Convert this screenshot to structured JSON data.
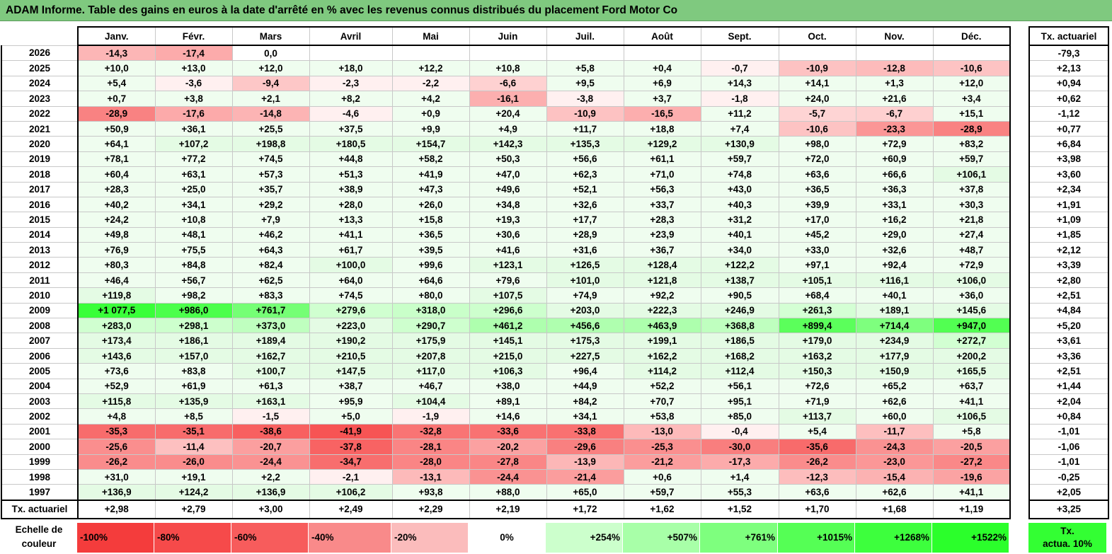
{
  "title": "ADAM Informe. Table des gains en euros à la date d'arrêté en % avec les revenus connus distribués du placement Ford Motor Co",
  "months": [
    "Janv.",
    "Févr.",
    "Mars",
    "Avril",
    "Mai",
    "Juin",
    "Juil.",
    "Août",
    "Sept.",
    "Oct.",
    "Nov.",
    "Déc."
  ],
  "rate_header": "Tx. actuariel",
  "rows": [
    {
      "year": "2026",
      "values": [
        "-14,3",
        "-17,4",
        "0,0",
        "",
        "",
        "",
        "",
        "",
        "",
        "",
        "",
        ""
      ],
      "rate": "-79,3"
    },
    {
      "year": "2025",
      "values": [
        "+10,0",
        "+13,0",
        "+12,0",
        "+18,0",
        "+12,2",
        "+10,8",
        "+5,8",
        "+0,4",
        "-0,7",
        "-10,9",
        "-12,8",
        "-10,6"
      ],
      "rate": "+2,13"
    },
    {
      "year": "2024",
      "values": [
        "+5,4",
        "-3,6",
        "-9,4",
        "-2,3",
        "-2,2",
        "-6,6",
        "+9,5",
        "+6,9",
        "+14,3",
        "+14,1",
        "+1,3",
        "+12,0"
      ],
      "rate": "+0,94"
    },
    {
      "year": "2023",
      "values": [
        "+0,7",
        "+3,8",
        "+2,1",
        "+8,2",
        "+4,2",
        "-16,1",
        "-3,8",
        "+3,7",
        "-1,8",
        "+24,0",
        "+21,6",
        "+3,4"
      ],
      "rate": "+0,62"
    },
    {
      "year": "2022",
      "values": [
        "-28,9",
        "-17,6",
        "-14,8",
        "-4,6",
        "+0,9",
        "+20,4",
        "-10,9",
        "-16,5",
        "+11,2",
        "-5,7",
        "-6,7",
        "+15,1"
      ],
      "rate": "-1,12"
    },
    {
      "year": "2021",
      "values": [
        "+50,9",
        "+36,1",
        "+25,5",
        "+37,5",
        "+9,9",
        "+4,9",
        "+11,7",
        "+18,8",
        "+7,4",
        "-10,6",
        "-23,3",
        "-28,9"
      ],
      "rate": "+0,77"
    },
    {
      "year": "2020",
      "values": [
        "+64,1",
        "+107,2",
        "+198,8",
        "+180,5",
        "+154,7",
        "+142,3",
        "+135,3",
        "+129,2",
        "+130,9",
        "+98,0",
        "+72,9",
        "+83,2"
      ],
      "rate": "+6,84"
    },
    {
      "year": "2019",
      "values": [
        "+78,1",
        "+77,2",
        "+74,5",
        "+44,8",
        "+58,2",
        "+50,3",
        "+56,6",
        "+61,1",
        "+59,7",
        "+72,0",
        "+60,9",
        "+59,7"
      ],
      "rate": "+3,98"
    },
    {
      "year": "2018",
      "values": [
        "+60,4",
        "+63,1",
        "+57,3",
        "+51,3",
        "+41,9",
        "+47,0",
        "+62,3",
        "+71,0",
        "+74,8",
        "+63,6",
        "+66,6",
        "+106,1"
      ],
      "rate": "+3,60"
    },
    {
      "year": "2017",
      "values": [
        "+28,3",
        "+25,0",
        "+35,7",
        "+38,9",
        "+47,3",
        "+49,6",
        "+52,1",
        "+56,3",
        "+43,0",
        "+36,5",
        "+36,3",
        "+37,8"
      ],
      "rate": "+2,34"
    },
    {
      "year": "2016",
      "values": [
        "+40,2",
        "+34,1",
        "+29,2",
        "+28,0",
        "+26,0",
        "+34,8",
        "+32,6",
        "+33,7",
        "+40,3",
        "+39,9",
        "+33,1",
        "+30,3"
      ],
      "rate": "+1,91"
    },
    {
      "year": "2015",
      "values": [
        "+24,2",
        "+10,8",
        "+7,9",
        "+13,3",
        "+15,8",
        "+19,3",
        "+17,7",
        "+28,3",
        "+31,2",
        "+17,0",
        "+16,2",
        "+21,8"
      ],
      "rate": "+1,09"
    },
    {
      "year": "2014",
      "values": [
        "+49,8",
        "+48,1",
        "+46,2",
        "+41,1",
        "+36,5",
        "+30,6",
        "+28,9",
        "+23,9",
        "+40,1",
        "+45,2",
        "+29,0",
        "+27,4"
      ],
      "rate": "+1,85"
    },
    {
      "year": "2013",
      "values": [
        "+76,9",
        "+75,5",
        "+64,3",
        "+61,7",
        "+39,5",
        "+41,6",
        "+31,6",
        "+36,7",
        "+34,0",
        "+33,0",
        "+32,6",
        "+48,7"
      ],
      "rate": "+2,12"
    },
    {
      "year": "2012",
      "values": [
        "+80,3",
        "+84,8",
        "+82,4",
        "+100,0",
        "+99,6",
        "+123,1",
        "+126,5",
        "+128,4",
        "+122,2",
        "+97,1",
        "+92,4",
        "+72,9"
      ],
      "rate": "+3,39"
    },
    {
      "year": "2011",
      "values": [
        "+46,4",
        "+56,7",
        "+62,5",
        "+64,0",
        "+64,6",
        "+79,6",
        "+101,0",
        "+121,8",
        "+138,7",
        "+105,1",
        "+116,1",
        "+106,0"
      ],
      "rate": "+2,80"
    },
    {
      "year": "2010",
      "values": [
        "+119,8",
        "+98,2",
        "+83,3",
        "+74,5",
        "+80,0",
        "+107,5",
        "+74,9",
        "+92,2",
        "+90,5",
        "+68,4",
        "+40,1",
        "+36,0"
      ],
      "rate": "+2,51"
    },
    {
      "year": "2009",
      "values": [
        "+1 077,5",
        "+986,0",
        "+761,7",
        "+279,6",
        "+318,0",
        "+296,6",
        "+203,0",
        "+222,3",
        "+246,9",
        "+261,3",
        "+189,1",
        "+145,6"
      ],
      "rate": "+4,84"
    },
    {
      "year": "2008",
      "values": [
        "+283,0",
        "+298,1",
        "+373,0",
        "+223,0",
        "+290,7",
        "+461,2",
        "+456,6",
        "+463,9",
        "+368,8",
        "+899,4",
        "+714,4",
        "+947,0"
      ],
      "rate": "+5,20"
    },
    {
      "year": "2007",
      "values": [
        "+173,4",
        "+186,1",
        "+189,4",
        "+190,2",
        "+175,9",
        "+145,1",
        "+175,3",
        "+199,1",
        "+186,5",
        "+179,0",
        "+234,9",
        "+272,7"
      ],
      "rate": "+3,61"
    },
    {
      "year": "2006",
      "values": [
        "+143,6",
        "+157,0",
        "+162,7",
        "+210,5",
        "+207,8",
        "+215,0",
        "+227,5",
        "+162,2",
        "+168,2",
        "+163,2",
        "+177,9",
        "+200,2"
      ],
      "rate": "+3,36"
    },
    {
      "year": "2005",
      "values": [
        "+73,6",
        "+83,8",
        "+100,7",
        "+147,5",
        "+117,0",
        "+106,3",
        "+96,4",
        "+114,2",
        "+112,4",
        "+150,3",
        "+150,9",
        "+165,5"
      ],
      "rate": "+2,51"
    },
    {
      "year": "2004",
      "values": [
        "+52,9",
        "+61,9",
        "+61,3",
        "+38,7",
        "+46,7",
        "+38,0",
        "+44,9",
        "+52,2",
        "+56,1",
        "+72,6",
        "+65,2",
        "+63,7"
      ],
      "rate": "+1,44"
    },
    {
      "year": "2003",
      "values": [
        "+115,8",
        "+135,9",
        "+163,1",
        "+95,9",
        "+104,4",
        "+89,1",
        "+84,2",
        "+70,7",
        "+95,1",
        "+71,9",
        "+62,6",
        "+41,1"
      ],
      "rate": "+2,04"
    },
    {
      "year": "2002",
      "values": [
        "+4,8",
        "+8,5",
        "-1,5",
        "+5,0",
        "-1,9",
        "+14,6",
        "+34,1",
        "+53,8",
        "+85,0",
        "+113,7",
        "+60,0",
        "+106,5"
      ],
      "rate": "+0,84"
    },
    {
      "year": "2001",
      "values": [
        "-35,3",
        "-35,1",
        "-38,6",
        "-41,9",
        "-32,8",
        "-33,6",
        "-33,8",
        "-13,0",
        "-0,4",
        "+5,4",
        "-11,7",
        "+5,8"
      ],
      "rate": "-1,01"
    },
    {
      "year": "2000",
      "values": [
        "-25,6",
        "-11,4",
        "-20,7",
        "-37,8",
        "-28,1",
        "-20,2",
        "-29,6",
        "-25,3",
        "-30,0",
        "-35,6",
        "-24,3",
        "-20,5"
      ],
      "rate": "-1,06"
    },
    {
      "year": "1999",
      "values": [
        "-26,2",
        "-26,0",
        "-24,4",
        "-34,7",
        "-28,0",
        "-27,8",
        "-13,9",
        "-21,2",
        "-17,3",
        "-26,2",
        "-23,0",
        "-27,2"
      ],
      "rate": "-1,01"
    },
    {
      "year": "1998",
      "values": [
        "+31,0",
        "+19,1",
        "+2,2",
        "-2,1",
        "-13,1",
        "-24,4",
        "-21,4",
        "+0,6",
        "+1,4",
        "-12,3",
        "-15,4",
        "-19,6"
      ],
      "rate": "-0,25"
    },
    {
      "year": "1997",
      "values": [
        "+136,9",
        "+124,2",
        "+136,9",
        "+106,2",
        "+93,8",
        "+88,0",
        "+65,0",
        "+59,7",
        "+55,3",
        "+63,6",
        "+62,6",
        "+41,1"
      ],
      "rate": "+2,05"
    }
  ],
  "total_row": {
    "label": "Tx. actuariel",
    "values": [
      "+2,98",
      "+2,79",
      "+3,00",
      "+2,49",
      "+2,29",
      "+2,19",
      "+1,72",
      "+1,62",
      "+1,52",
      "+1,70",
      "+1,68",
      "+1,19"
    ],
    "rate": "+3,25"
  },
  "scale": {
    "label_line1": "Echelle de",
    "label_line2": "couleur",
    "steps": [
      {
        "text": "-100%",
        "color": "#f43c3c"
      },
      {
        "text": "-80%",
        "color": "#f64a4a"
      },
      {
        "text": "-60%",
        "color": "#f75c5c"
      },
      {
        "text": "-40%",
        "color": "#f98a8a"
      },
      {
        "text": "-20%",
        "color": "#fbbcbc"
      },
      {
        "text": "0%",
        "color": "#ffffff"
      },
      {
        "text": "+254%",
        "color": "#ccffcc"
      },
      {
        "text": "+507%",
        "color": "#a8ffa8"
      },
      {
        "text": "+761%",
        "color": "#7eff7e"
      },
      {
        "text": "+1015%",
        "color": "#55ff55"
      },
      {
        "text": "+1268%",
        "color": "#3dff3d"
      },
      {
        "text": "+1522%",
        "color": "#2bff2b"
      }
    ],
    "rate_label_line1": "Tx.",
    "rate_label_line2": "actua. 10%"
  },
  "colors": {
    "title_bg": "#7fc97f",
    "positive_low": "#effdef",
    "negative_low": "#fff0f0",
    "rate_legend": "#33ff33"
  }
}
